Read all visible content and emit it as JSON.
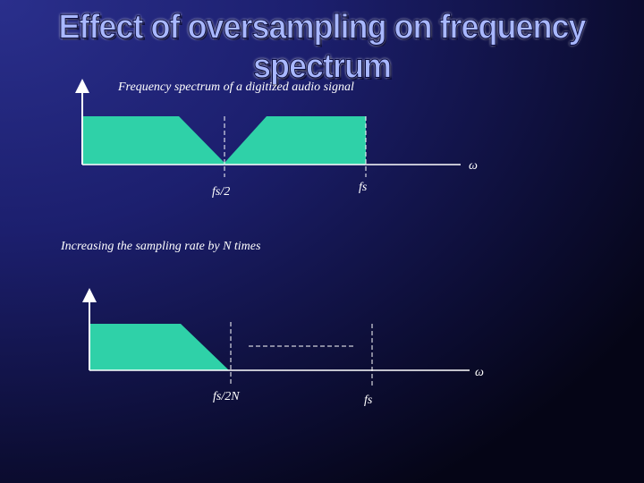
{
  "title": "Effect of oversampling on frequency spectrum",
  "top_diagram": {
    "caption": "Frequency spectrum of a digitized audio signal",
    "omega_label": "ω",
    "half_fs_label": "fs/2",
    "fs_label": "fs"
  },
  "bottom_diagram": {
    "caption": "Increasing the sampling rate by N times",
    "omega_label": "ω",
    "fs_over_2n_label": "fs/2N",
    "fs_label": "fs"
  },
  "colors": {
    "spectrum_fill": "#2fd1a8",
    "axis": "#ffffff",
    "title_text": "#a9b8ff"
  }
}
